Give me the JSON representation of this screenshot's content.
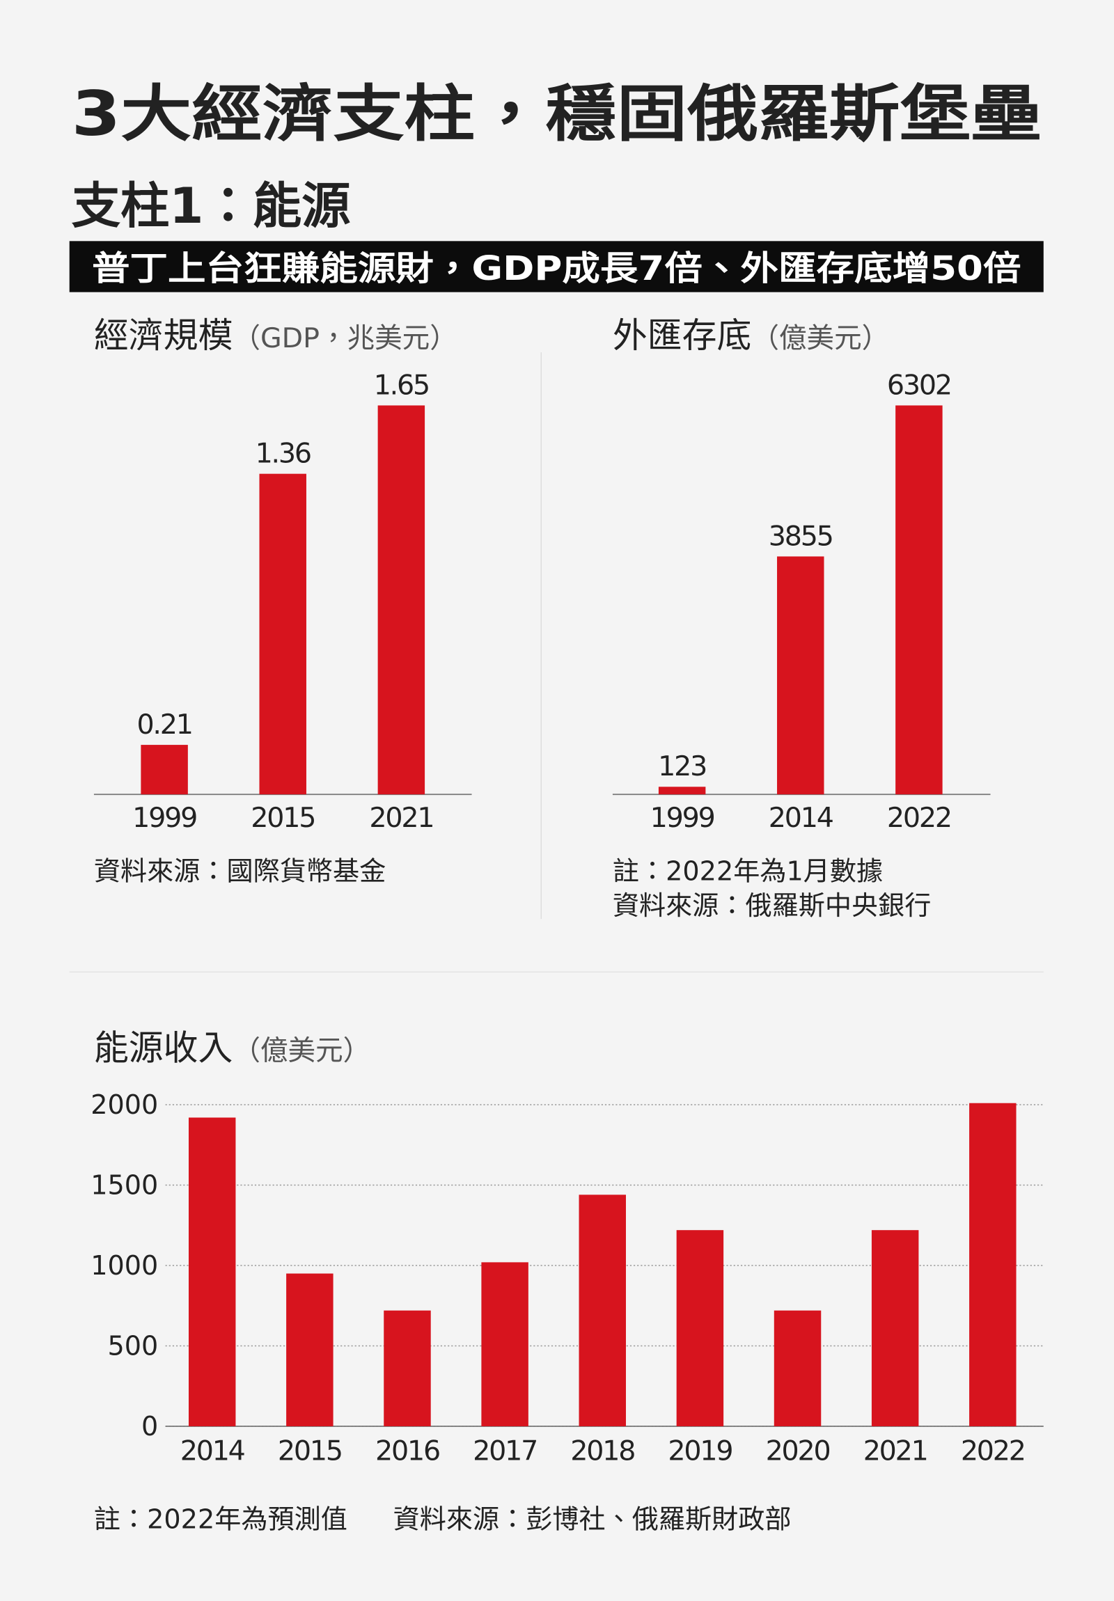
{
  "title": "3大經濟支柱，穩固俄羅斯堡壘",
  "subtitle": "支柱1：能源",
  "headline": "普丁上台狂賺能源財，GDP成長7倍、外匯存底增50倍",
  "chart_data": [
    {
      "type": "bar",
      "title": "經濟規模",
      "unit": "（GDP，兆美元）",
      "categories": [
        "1999",
        "2015",
        "2021"
      ],
      "values": [
        0.21,
        1.36,
        1.65
      ],
      "color": "#d7141e",
      "data_labels": true,
      "notes": [
        "資料來源：國際貨幣基金"
      ]
    },
    {
      "type": "bar",
      "title": "外匯存底",
      "unit": "（億美元）",
      "categories": [
        "1999",
        "2014",
        "2022"
      ],
      "values": [
        123,
        3855,
        6302
      ],
      "color": "#d7141e",
      "data_labels": true,
      "notes": [
        "註：2022年為1月數據",
        "資料來源：俄羅斯中央銀行"
      ]
    },
    {
      "type": "bar",
      "title": "能源收入",
      "unit": "（億美元）",
      "categories": [
        "2014",
        "2015",
        "2016",
        "2017",
        "2018",
        "2019",
        "2020",
        "2021",
        "2022"
      ],
      "values": [
        1920,
        950,
        720,
        1020,
        1440,
        1220,
        720,
        1220,
        2010
      ],
      "color": "#d7141e",
      "ylim": [
        0,
        2000
      ],
      "yticks": [
        0,
        500,
        1000,
        1500,
        2000
      ],
      "grid": true,
      "notes": [
        "註：2022年為預測值",
        "資料來源：彭博社、俄羅斯財政部"
      ]
    }
  ]
}
